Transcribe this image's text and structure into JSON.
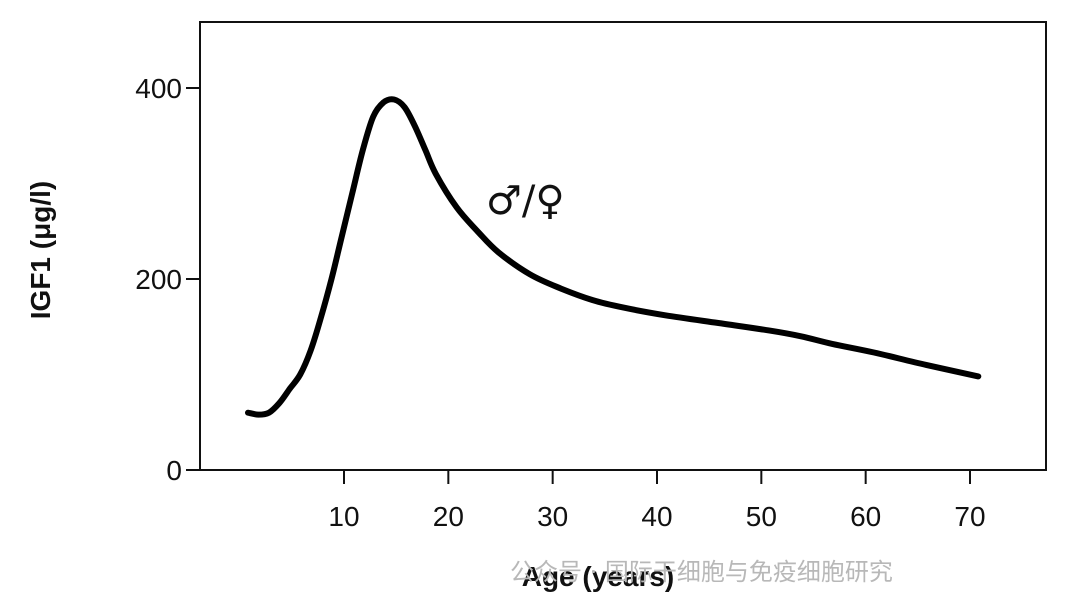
{
  "chart_data": {
    "type": "line",
    "title": "",
    "xlabel": "Age (years)",
    "ylabel": "IGF1 (μg/l)",
    "xlim": [
      0,
      72
    ],
    "ylim": [
      0,
      470
    ],
    "x_ticks": [
      10,
      20,
      30,
      40,
      50,
      60,
      70
    ],
    "y_ticks": [
      0,
      200,
      400
    ],
    "grid": false,
    "annotation": "♂/♀",
    "series": [
      {
        "x": [
          0,
          1,
          2,
          3,
          4,
          5,
          6,
          7,
          8,
          9,
          10,
          11,
          12,
          13,
          14,
          15,
          16,
          17,
          18,
          20,
          22,
          24,
          27,
          30,
          33,
          36,
          40,
          45,
          50,
          53,
          56,
          60,
          65,
          70
        ],
        "values": [
          60,
          58,
          60,
          70,
          85,
          100,
          125,
          160,
          200,
          245,
          290,
          335,
          370,
          385,
          388,
          380,
          360,
          335,
          310,
          275,
          250,
          228,
          205,
          190,
          178,
          170,
          162,
          154,
          146,
          140,
          132,
          123,
          110,
          98
        ]
      }
    ]
  },
  "watermark": "公众号 · 国际干细胞与免疫细胞研究"
}
